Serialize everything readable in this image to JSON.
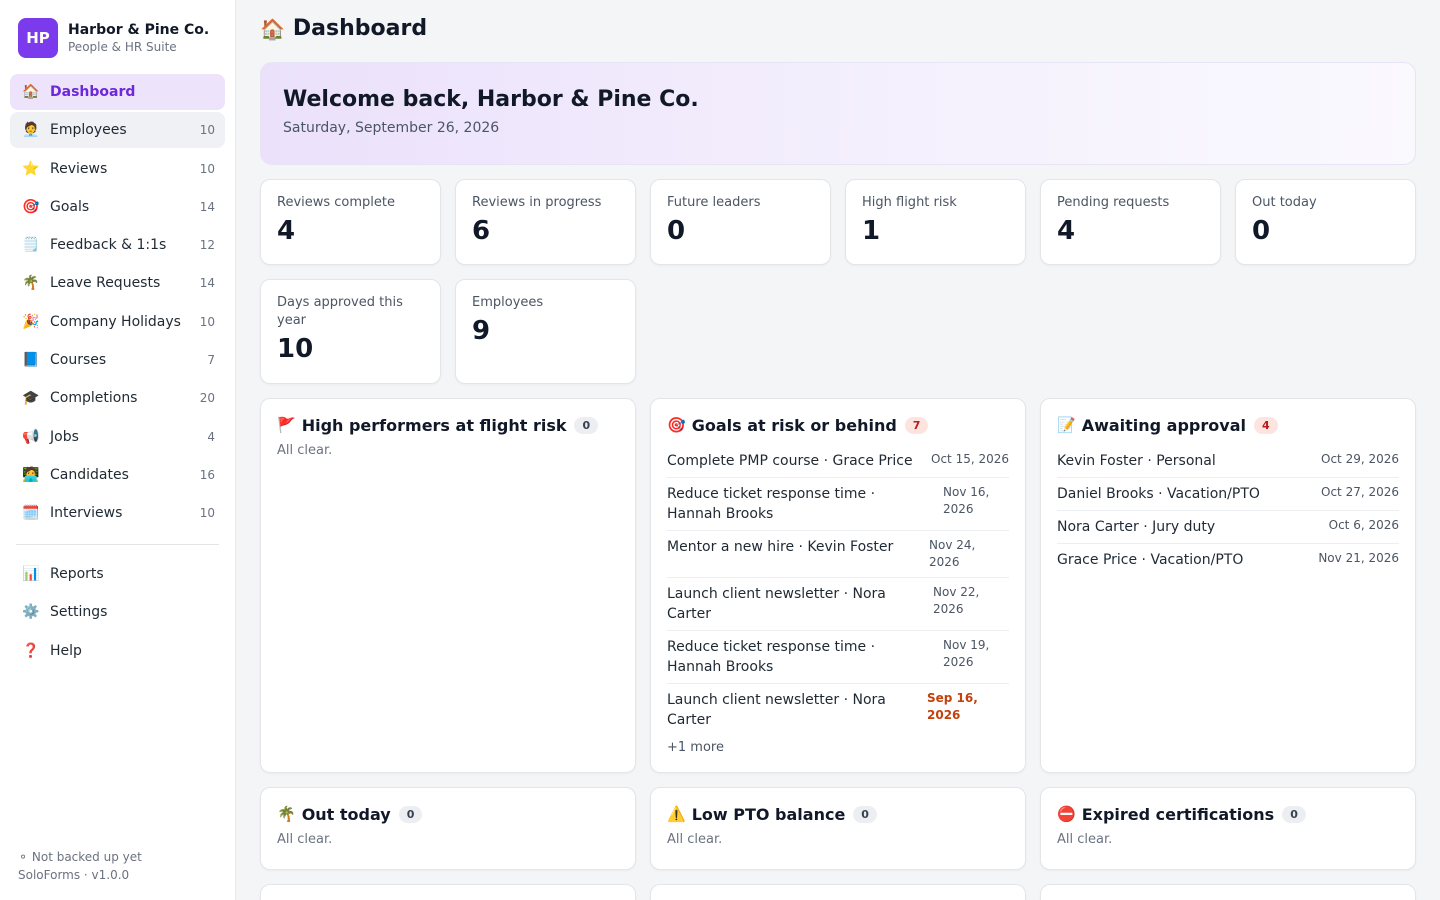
{
  "brand": {
    "logo": "HP",
    "name": "Harbor & Pine Co.",
    "subtitle": "People & HR Suite"
  },
  "nav": [
    {
      "icon": "🏠",
      "label": "Dashboard",
      "count": ""
    },
    {
      "icon": "🧑‍💼",
      "label": "Employees",
      "count": "10"
    },
    {
      "icon": "⭐",
      "label": "Reviews",
      "count": "10"
    },
    {
      "icon": "🎯",
      "label": "Goals",
      "count": "14"
    },
    {
      "icon": "🗒️",
      "label": "Feedback & 1:1s",
      "count": "12"
    },
    {
      "icon": "🌴",
      "label": "Leave Requests",
      "count": "14"
    },
    {
      "icon": "🎉",
      "label": "Company Holidays",
      "count": "10"
    },
    {
      "icon": "📘",
      "label": "Courses",
      "count": "7"
    },
    {
      "icon": "🎓",
      "label": "Completions",
      "count": "20"
    },
    {
      "icon": "📢",
      "label": "Jobs",
      "count": "4"
    },
    {
      "icon": "🧑‍💻",
      "label": "Candidates",
      "count": "16"
    },
    {
      "icon": "🗓️",
      "label": "Interviews",
      "count": "10"
    }
  ],
  "nav2": [
    {
      "icon": "📊",
      "label": "Reports"
    },
    {
      "icon": "⚙️",
      "label": "Settings"
    },
    {
      "icon": "❓",
      "label": "Help"
    }
  ],
  "footer": {
    "backup": "⚬ Not backed up yet",
    "version": "SoloForms · v1.0.0"
  },
  "page": {
    "icon": "🏠",
    "title": "Dashboard"
  },
  "welcome": {
    "title": "Welcome back, Harbor & Pine Co.",
    "date": "Saturday, September 26, 2026"
  },
  "stats": [
    {
      "label": "Reviews complete",
      "value": "4"
    },
    {
      "label": "Reviews in progress",
      "value": "6"
    },
    {
      "label": "Future leaders",
      "value": "0"
    },
    {
      "label": "High flight risk",
      "value": "1"
    },
    {
      "label": "Pending requests",
      "value": "4"
    },
    {
      "label": "Out today",
      "value": "0"
    },
    {
      "label": "Days approved this year",
      "value": "10"
    },
    {
      "label": "Employees",
      "value": "9"
    }
  ],
  "cards": {
    "flight_risk": {
      "icon": "🚩",
      "title": "High performers at flight risk",
      "count": "0",
      "empty": "All clear."
    },
    "goals": {
      "icon": "🎯",
      "title": "Goals at risk or behind",
      "count": "7",
      "rows": [
        {
          "text": "Complete PMP course · Grace Price",
          "date": "Oct 15, 2026"
        },
        {
          "text": "Reduce ticket response time · Hannah Brooks",
          "date": "Nov 16, 2026"
        },
        {
          "text": "Mentor a new hire · Kevin Foster",
          "date": "Nov 24, 2026"
        },
        {
          "text": "Launch client newsletter · Nora Carter",
          "date": "Nov 22, 2026"
        },
        {
          "text": "Reduce ticket response time · Hannah Brooks",
          "date": "Nov 19, 2026"
        },
        {
          "text": "Launch client newsletter · Nora Carter",
          "date": "Sep 16, 2026"
        }
      ],
      "more": "+1 more"
    },
    "approval": {
      "icon": "📝",
      "title": "Awaiting approval",
      "count": "4",
      "rows": [
        {
          "text": "Kevin Foster · Personal",
          "date": "Oct 29, 2026"
        },
        {
          "text": "Daniel Brooks · Vacation/PTO",
          "date": "Oct 27, 2026"
        },
        {
          "text": "Nora Carter · Jury duty",
          "date": "Oct 6, 2026"
        },
        {
          "text": "Grace Price · Vacation/PTO",
          "date": "Nov 21, 2026"
        }
      ]
    },
    "out_today": {
      "icon": "🌴",
      "title": "Out today",
      "count": "0",
      "empty": "All clear."
    },
    "low_pto": {
      "icon": "⚠️",
      "title": "Low PTO balance",
      "count": "0",
      "empty": "All clear."
    },
    "expired": {
      "icon": "⛔",
      "title": "Expired certifications",
      "count": "0",
      "empty": "All clear."
    }
  }
}
